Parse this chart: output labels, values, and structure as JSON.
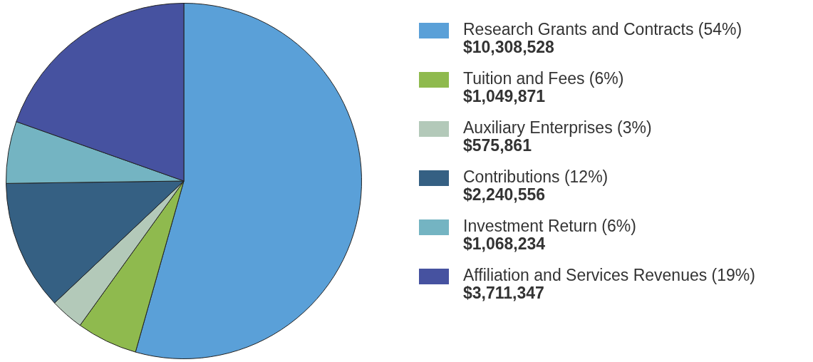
{
  "chart_data": {
    "type": "pie",
    "categories": [
      "Research Grants and Contracts (54%)",
      "Tuition and Fees (6%)",
      "Auxiliary Enterprises (3%)",
      "Contributions (12%)",
      "Investment Return (6%)",
      "Affiliation and Services Revenues (19%)"
    ],
    "values": [
      10308528,
      1049871,
      575861,
      2240556,
      1068234,
      3711347
    ],
    "value_labels": [
      "$10,308,528",
      "$1,049,871",
      "$575,861",
      "$2,240,556",
      "$1,068,234",
      "$3,711,347"
    ],
    "colors": [
      "#5aa0d8",
      "#8fba4e",
      "#b3c9b9",
      "#356083",
      "#74b4c2",
      "#4652a0"
    ],
    "legend": "right"
  }
}
